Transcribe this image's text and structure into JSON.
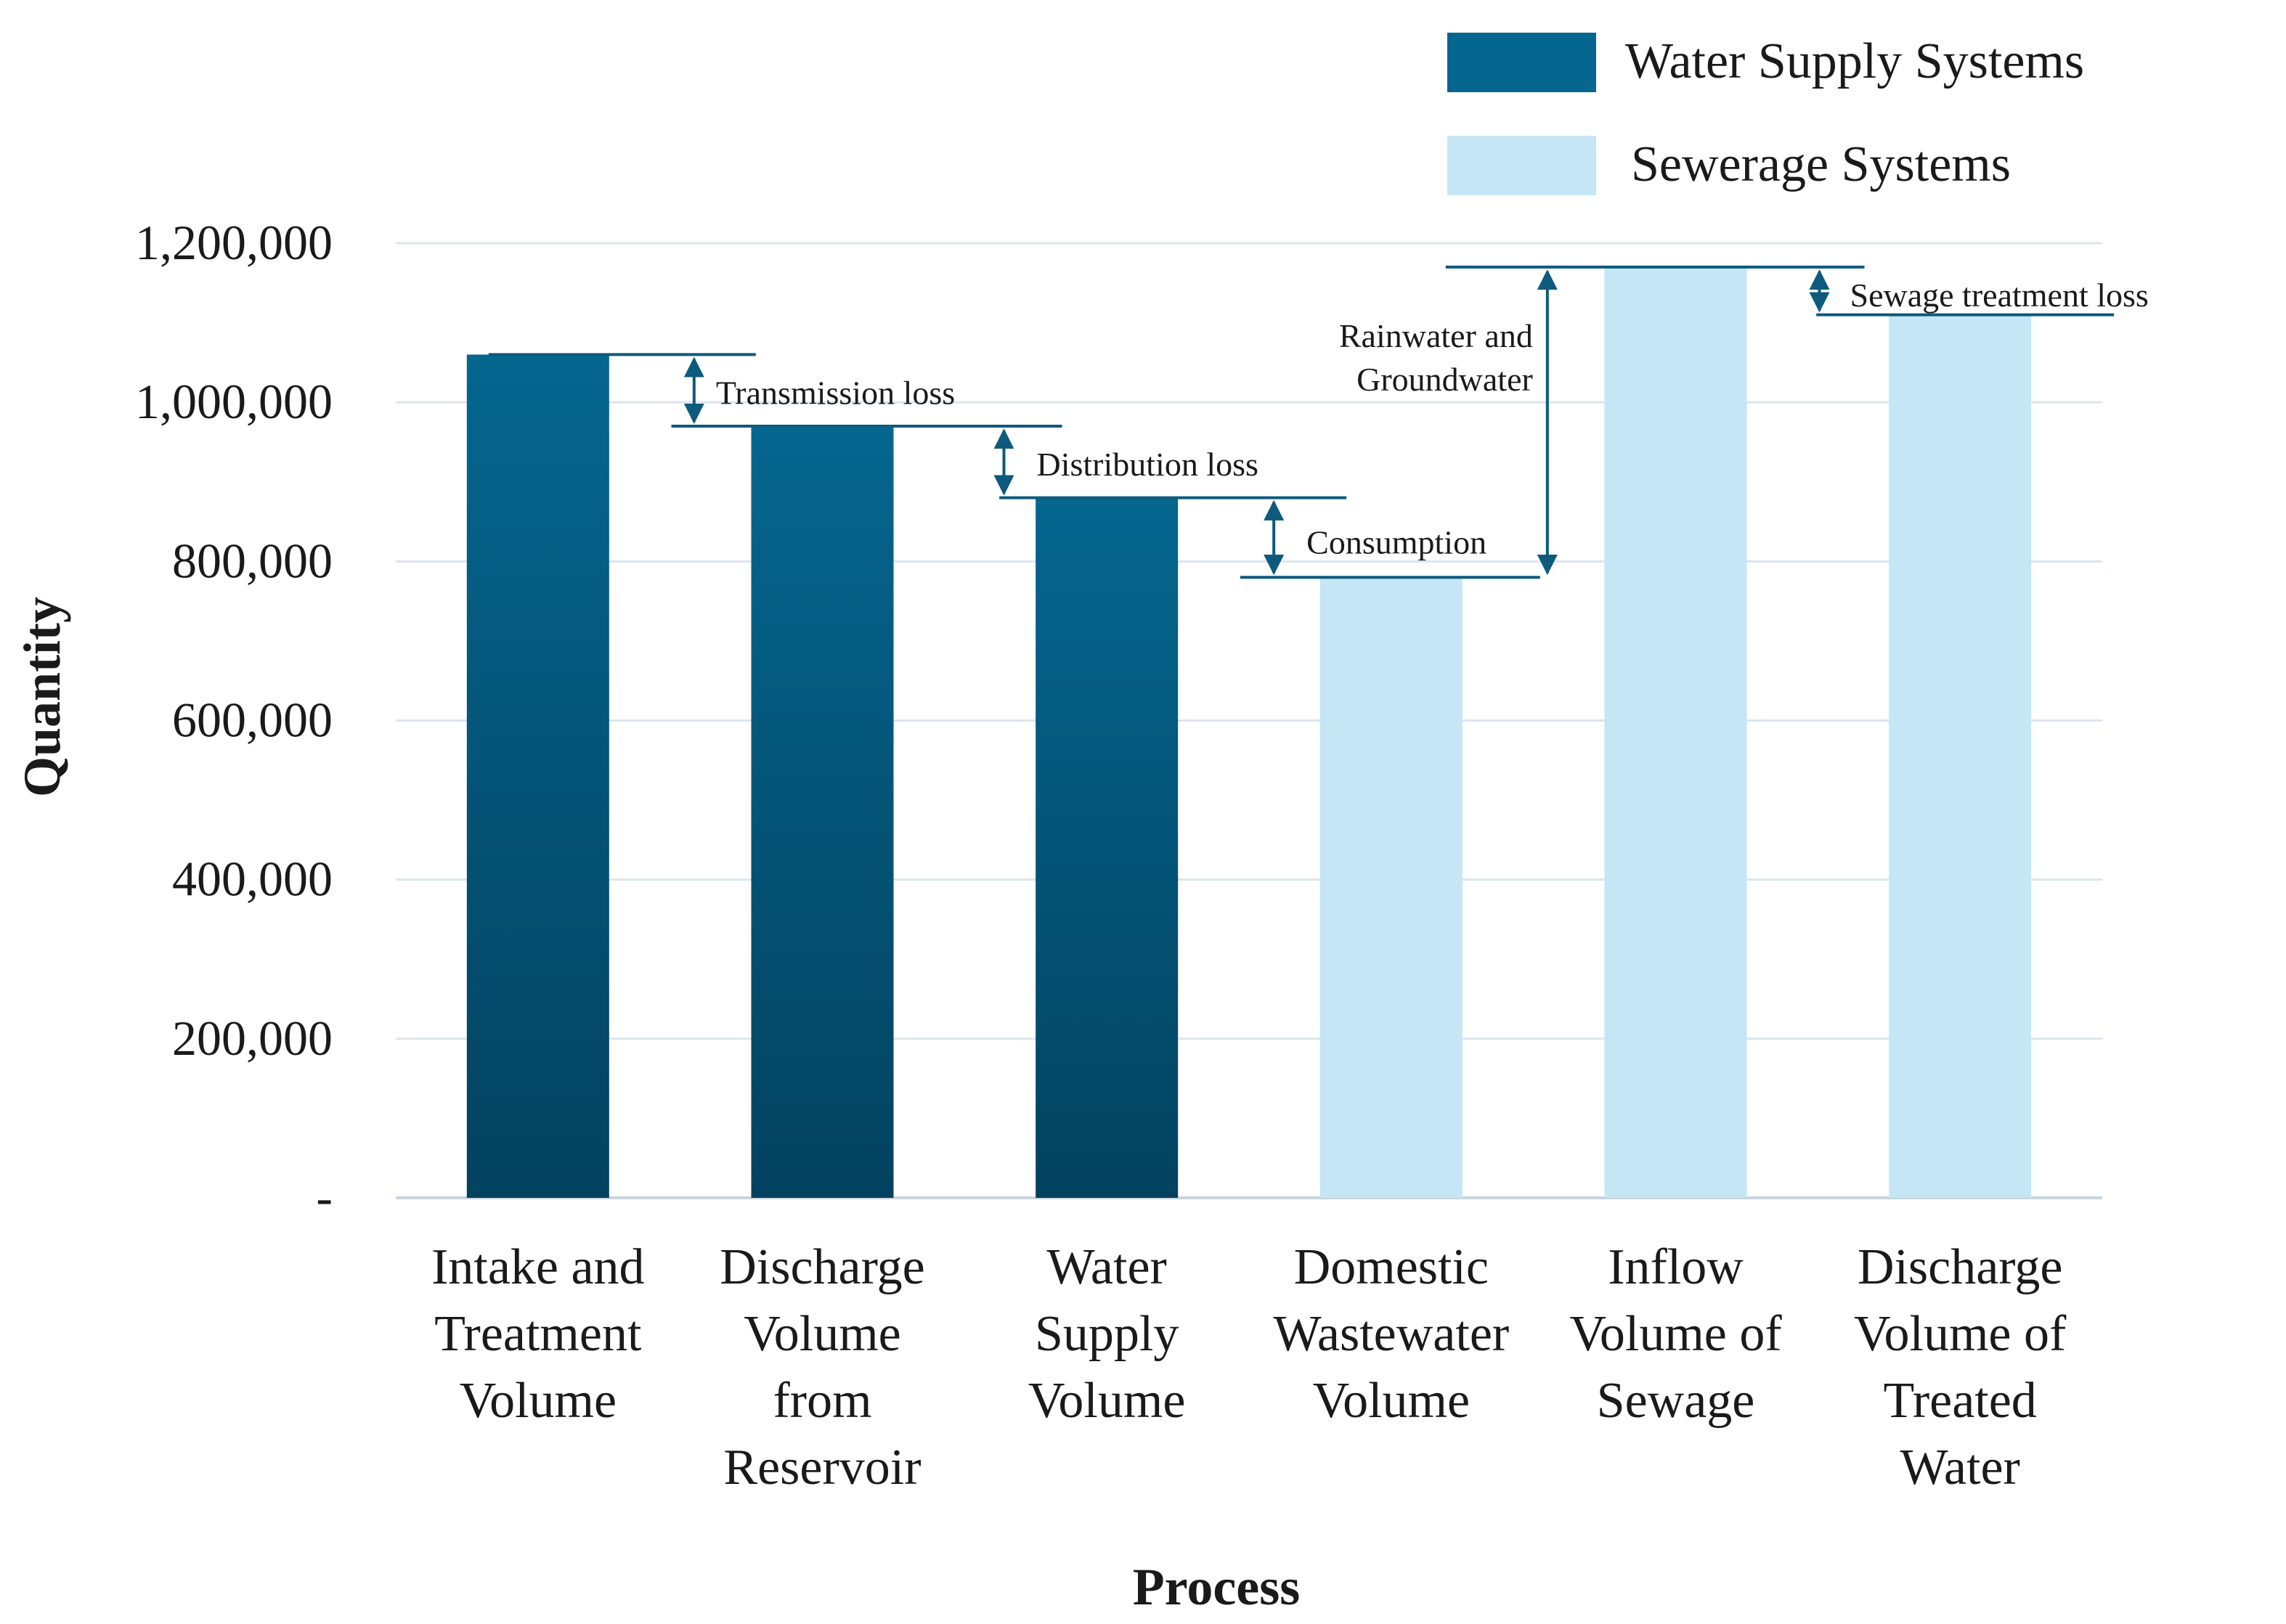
{
  "chart_data": {
    "type": "bar",
    "title": "",
    "xlabel": "Process",
    "ylabel": "Quantity",
    "ylim": [
      0,
      1200000
    ],
    "y_ticks": [
      {
        "value": 0,
        "label": "-"
      },
      {
        "value": 200000,
        "label": "200,000"
      },
      {
        "value": 400000,
        "label": "400,000"
      },
      {
        "value": 600000,
        "label": "600,000"
      },
      {
        "value": 800000,
        "label": "800,000"
      },
      {
        "value": 1000000,
        "label": "1,000,000"
      },
      {
        "value": 1200000,
        "label": "1,200,000"
      }
    ],
    "grid": true,
    "legend_position": "top-right",
    "categories": [
      [
        "Intake and",
        "Treatment",
        "Volume"
      ],
      [
        "Discharge",
        "Volume",
        "from",
        "Reservoir"
      ],
      [
        "Water",
        "Supply",
        "Volume"
      ],
      [
        "Domestic",
        "Wastewater",
        "Volume"
      ],
      [
        "Inflow",
        "Volume of",
        "Sewage"
      ],
      [
        "Discharge",
        "Volume of",
        "Treated",
        "Water"
      ]
    ],
    "values": [
      1060000,
      970000,
      880000,
      780000,
      1170000,
      1110000
    ],
    "bar_series": [
      0,
      0,
      0,
      1,
      1,
      1
    ],
    "series": [
      {
        "name": "Water Supply Systems",
        "color_top": "#05668f",
        "color_bottom": "#03425f"
      },
      {
        "name": "Sewerage Systems",
        "color_top": "#c5e6f4",
        "color_bottom": "#c5e6f4"
      }
    ],
    "annotations": [
      {
        "label": [
          "Transmission loss"
        ],
        "from_value": 1060000,
        "to_value": 970000
      },
      {
        "label": [
          "Distribution  loss"
        ],
        "from_value": 970000,
        "to_value": 880000
      },
      {
        "label": [
          "Consumption"
        ],
        "from_value": 880000,
        "to_value": 780000
      },
      {
        "label": [
          "Rainwater and",
          "Groundwater"
        ],
        "from_value": 780000,
        "to_value": 1170000
      },
      {
        "label": [
          "Sewage treatment loss"
        ],
        "from_value": 1170000,
        "to_value": 1110000
      }
    ],
    "accent_color": "#0d5a7c"
  }
}
